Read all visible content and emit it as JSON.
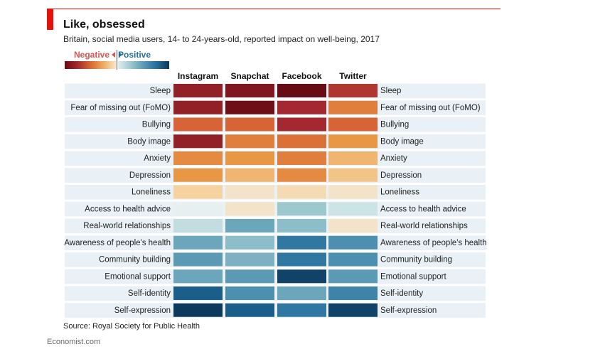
{
  "header": {
    "title": "Like, obsessed",
    "subtitle": "Britain, social media users, 14- to 24-years-old, reported impact on well-being, 2017"
  },
  "legend": {
    "negative_label": "Negative",
    "positive_label": "Positive"
  },
  "footer": {
    "source": "Source: Royal Society for Public Health",
    "brand": "Economist.com"
  },
  "colors": {
    "accent_red": "#e3120b",
    "row_band": "#e9f1f6"
  },
  "chart_data": {
    "type": "heatmap",
    "title": "Like, obsessed",
    "subtitle": "Britain, social media users, 14- to 24-years-old, reported impact on well-being, 2017",
    "columns": [
      "Instagram",
      "Snapchat",
      "Facebook",
      "Twitter"
    ],
    "rows": [
      "Sleep",
      "Fear of missing out (FoMO)",
      "Bullying",
      "Body image",
      "Anxiety",
      "Depression",
      "Loneliness",
      "Access to health advice",
      "Real-world relationships",
      "Awareness of people's health",
      "Community building",
      "Emotional support",
      "Self-identity",
      "Self-expression"
    ],
    "scale": {
      "min": -1,
      "max": 1,
      "negative_label": "Negative",
      "positive_label": "Positive"
    },
    "values": [
      [
        -0.85,
        -0.9,
        -0.97,
        -0.75
      ],
      [
        -0.85,
        -0.95,
        -0.8,
        -0.5
      ],
      [
        -0.6,
        -0.6,
        -0.8,
        -0.6
      ],
      [
        -0.85,
        -0.5,
        -0.55,
        -0.4
      ],
      [
        -0.45,
        -0.4,
        -0.5,
        -0.3
      ],
      [
        -0.4,
        -0.3,
        -0.45,
        -0.25
      ],
      [
        -0.2,
        -0.1,
        -0.15,
        -0.1
      ],
      [
        0.05,
        -0.1,
        0.4,
        0.2
      ],
      [
        0.25,
        0.55,
        0.45,
        -0.1
      ],
      [
        0.55,
        0.45,
        0.75,
        0.65
      ],
      [
        0.6,
        0.5,
        0.75,
        0.65
      ],
      [
        0.55,
        0.6,
        0.95,
        0.6
      ],
      [
        0.85,
        0.65,
        0.55,
        0.7
      ],
      [
        0.98,
        0.85,
        0.75,
        0.95
      ]
    ],
    "source": "Source: Royal Society for Public Health"
  }
}
